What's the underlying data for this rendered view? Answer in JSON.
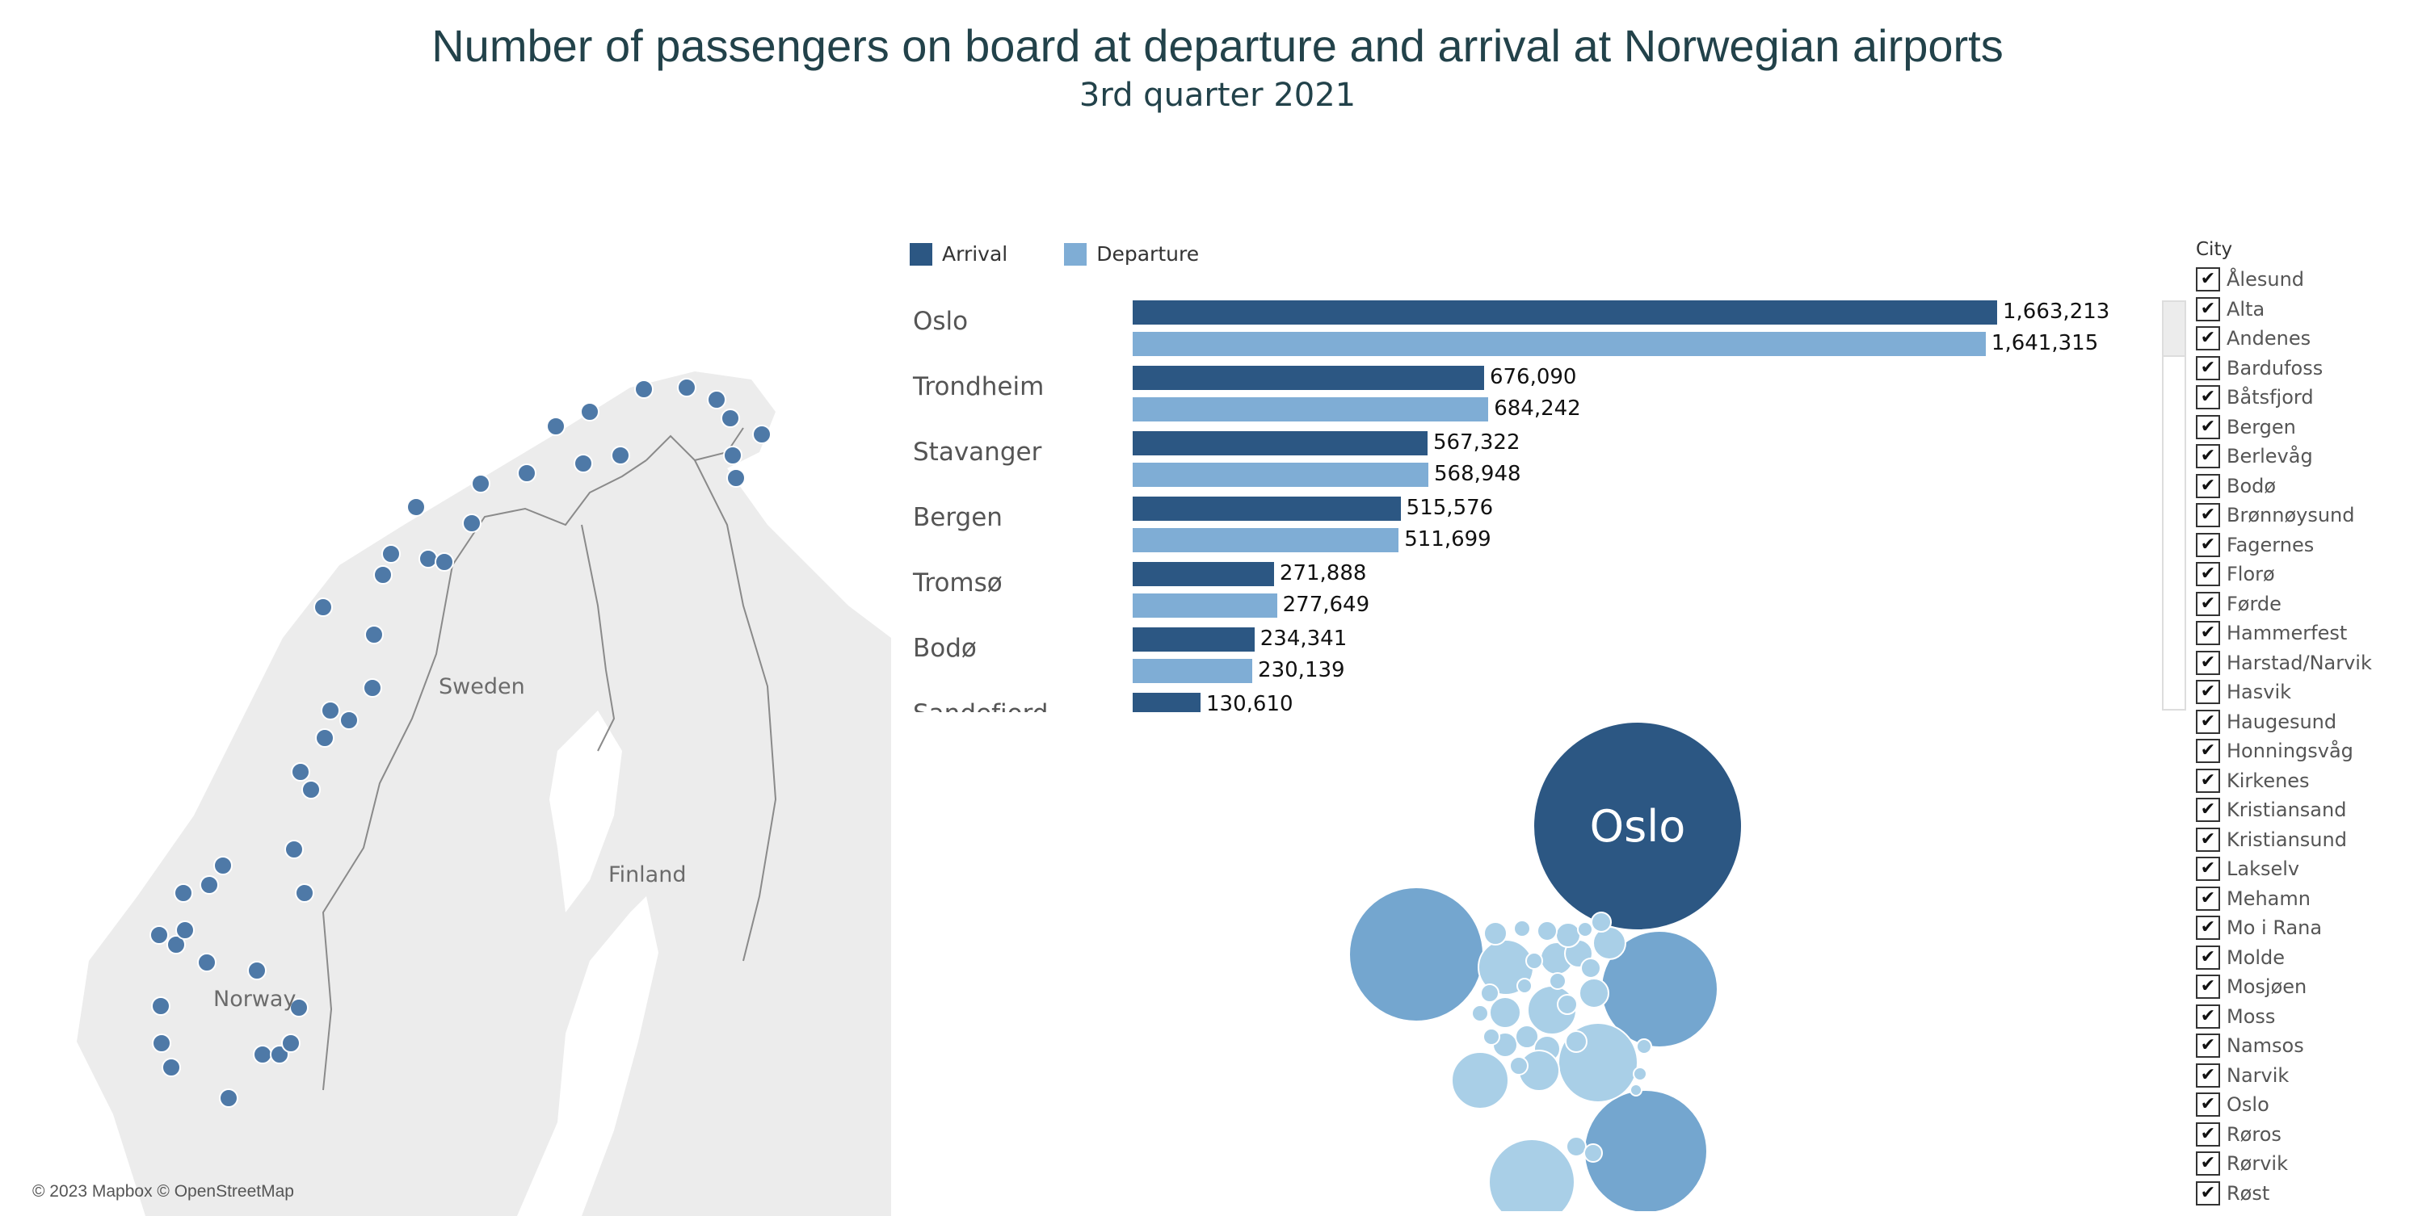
{
  "title": "Number of passengers on board at departure and arrival at Norwegian airports",
  "subtitle": "3rd quarter 2021",
  "map": {
    "labels": {
      "sweden": "Sweden",
      "finland": "Finland",
      "norway": "Norway"
    },
    "credit": "© 2023 Mapbox © OpenStreetMap",
    "marker_color": "#4e79a7"
  },
  "chart_data": {
    "type": "bar",
    "orientation": "horizontal",
    "categories": [
      "Oslo",
      "Trondheim",
      "Stavanger",
      "Bergen",
      "Tromsø",
      "Bodø",
      "Sandefjord"
    ],
    "series": [
      {
        "name": "Arrival",
        "color": "#2c5783",
        "values": [
          1663213,
          676090,
          567322,
          515576,
          271888,
          234341,
          130610
        ]
      },
      {
        "name": "Departure",
        "color": "#7fadd5",
        "values": [
          1641315,
          684242,
          568948,
          511699,
          277649,
          230139,
          null
        ]
      }
    ],
    "value_labels": [
      [
        "1,663,213",
        "676,090",
        "567,322",
        "515,576",
        "271,888",
        "234,341",
        "130,610"
      ],
      [
        "1,641,315",
        "684,242",
        "568,948",
        "511,699",
        "277,649",
        "230,139",
        ""
      ]
    ],
    "xlim": [
      0,
      1663213
    ],
    "legend_position": "top-left"
  },
  "bubbles": {
    "label": "Oslo",
    "colors": {
      "large": "#2c5783",
      "medium": "#74a6cf",
      "small": "#a9cfe7"
    }
  },
  "filter": {
    "title": "City",
    "items": [
      "Ålesund",
      "Alta",
      "Andenes",
      "Bardufoss",
      "Båtsfjord",
      "Bergen",
      "Berlevåg",
      "Bodø",
      "Brønnøysund",
      "Fagernes",
      "Florø",
      "Førde",
      "Hammerfest",
      "Harstad/Narvik",
      "Hasvik",
      "Haugesund",
      "Honningsvåg",
      "Kirkenes",
      "Kristiansand",
      "Kristiansund",
      "Lakselv",
      "Mehamn",
      "Mo i Rana",
      "Molde",
      "Mosjøen",
      "Moss",
      "Namsos",
      "Narvik",
      "Oslo",
      "Røros",
      "Rørvik",
      "Røst"
    ],
    "check_glyph": "✔"
  }
}
